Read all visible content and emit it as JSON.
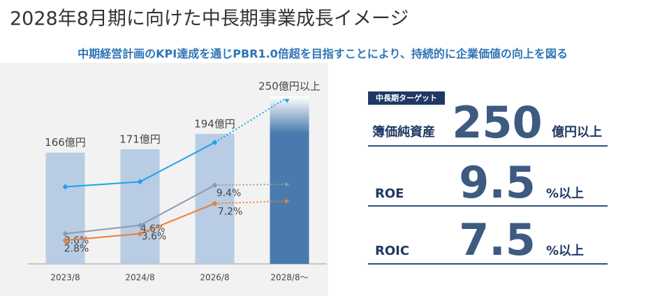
{
  "title": "2028年8月期に向けた中長期事業成長イメージ",
  "subtitle": "中期経営計画のKPI達成を通じPBR1.0倍超を目指すことにより、持続的に企業価値の向上を図る",
  "chart_data": {
    "type": "bar",
    "categories": [
      "2023/8",
      "2024/8",
      "2026/8",
      "2028/8～"
    ],
    "values": [
      166,
      171,
      194,
      250
    ],
    "value_labels": [
      "166億円",
      "171億円",
      "194億円",
      "250億円以上"
    ],
    "bar_colors": [
      "#b8cce4",
      "#b8cce4",
      "#b8cce4",
      "#4a7aad"
    ],
    "ylim": [
      0,
      250
    ],
    "y2lim": [
      0,
      20
    ],
    "series": [
      {
        "color": "#1aa3e8",
        "axis": "y2",
        "values": [
          9.2,
          9.8,
          14.5,
          19.7
        ]
      },
      {
        "color": "#8c9bb0",
        "axis": "y2",
        "values": [
          3.6,
          4.6,
          9.4,
          9.5
        ],
        "value_labels": [
          "3.6%",
          "4.6%",
          "9.4%",
          null
        ]
      },
      {
        "color": "#ed7d31",
        "axis": "y2",
        "values": [
          2.8,
          3.6,
          7.2,
          7.5
        ],
        "value_labels": [
          "2.8%",
          "3.6%",
          "7.2%",
          null
        ]
      }
    ]
  },
  "targets": {
    "label": "中長期ターゲット",
    "rows": [
      {
        "name": "簿価純資産",
        "value": "250",
        "unit": "億円以上"
      },
      {
        "name": "ROE",
        "value": "9.5",
        "unit": "%以上"
      },
      {
        "name": "ROIC",
        "value": "7.5",
        "unit": "%以上"
      }
    ]
  }
}
